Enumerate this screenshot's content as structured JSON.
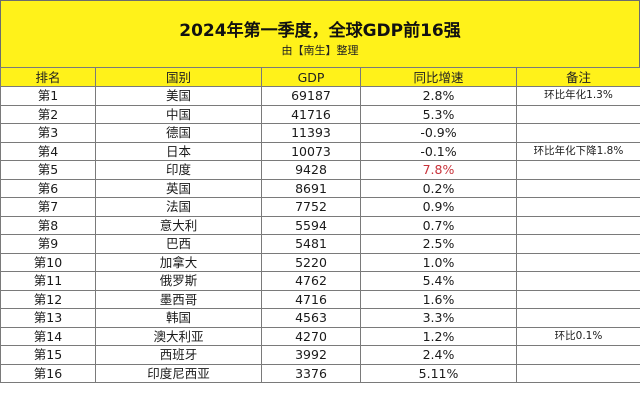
{
  "header": {
    "title": "2024年第一季度，全球GDP前16强",
    "subtitle": "由【南生】整理"
  },
  "columns": [
    "排名",
    "国别",
    "GDP",
    "同比增速",
    "备注"
  ],
  "rows": [
    {
      "rank": "第1",
      "country": "美国",
      "gdp": "69187",
      "growth": "2.8%",
      "note": "环比年化1.3%"
    },
    {
      "rank": "第2",
      "country": "中国",
      "gdp": "41716",
      "growth": "5.3%",
      "note": ""
    },
    {
      "rank": "第3",
      "country": "德国",
      "gdp": "11393",
      "growth": "-0.9%",
      "note": ""
    },
    {
      "rank": "第4",
      "country": "日本",
      "gdp": "10073",
      "growth": "-0.1%",
      "note": "环比年化下降1.8%"
    },
    {
      "rank": "第5",
      "country": "印度",
      "gdp": "9428",
      "growth": "7.8%",
      "note": ""
    },
    {
      "rank": "第6",
      "country": "英国",
      "gdp": "8691",
      "growth": "0.2%",
      "note": ""
    },
    {
      "rank": "第7",
      "country": "法国",
      "gdp": "7752",
      "growth": "0.9%",
      "note": ""
    },
    {
      "rank": "第8",
      "country": "意大利",
      "gdp": "5594",
      "growth": "0.7%",
      "note": ""
    },
    {
      "rank": "第9",
      "country": "巴西",
      "gdp": "5481",
      "growth": "2.5%",
      "note": ""
    },
    {
      "rank": "第10",
      "country": "加拿大",
      "gdp": "5220",
      "growth": "1.0%",
      "note": ""
    },
    {
      "rank": "第11",
      "country": "俄罗斯",
      "gdp": "4762",
      "growth": "5.4%",
      "note": ""
    },
    {
      "rank": "第12",
      "country": "墨西哥",
      "gdp": "4716",
      "growth": "1.6%",
      "note": ""
    },
    {
      "rank": "第13",
      "country": "韩国",
      "gdp": "4563",
      "growth": "3.3%",
      "note": ""
    },
    {
      "rank": "第14",
      "country": "澳大利亚",
      "gdp": "4270",
      "growth": "1.2%",
      "note": "环比0.1%"
    },
    {
      "rank": "第15",
      "country": "西班牙",
      "gdp": "3992",
      "growth": "2.4%",
      "note": ""
    },
    {
      "rank": "第16",
      "country": "印度尼西亚",
      "gdp": "3376",
      "growth": "5.11%",
      "note": ""
    }
  ],
  "colors": {
    "header_fill": "#fff21a",
    "highlight_growth": "#c8323a"
  },
  "highlight_rank": "第5"
}
